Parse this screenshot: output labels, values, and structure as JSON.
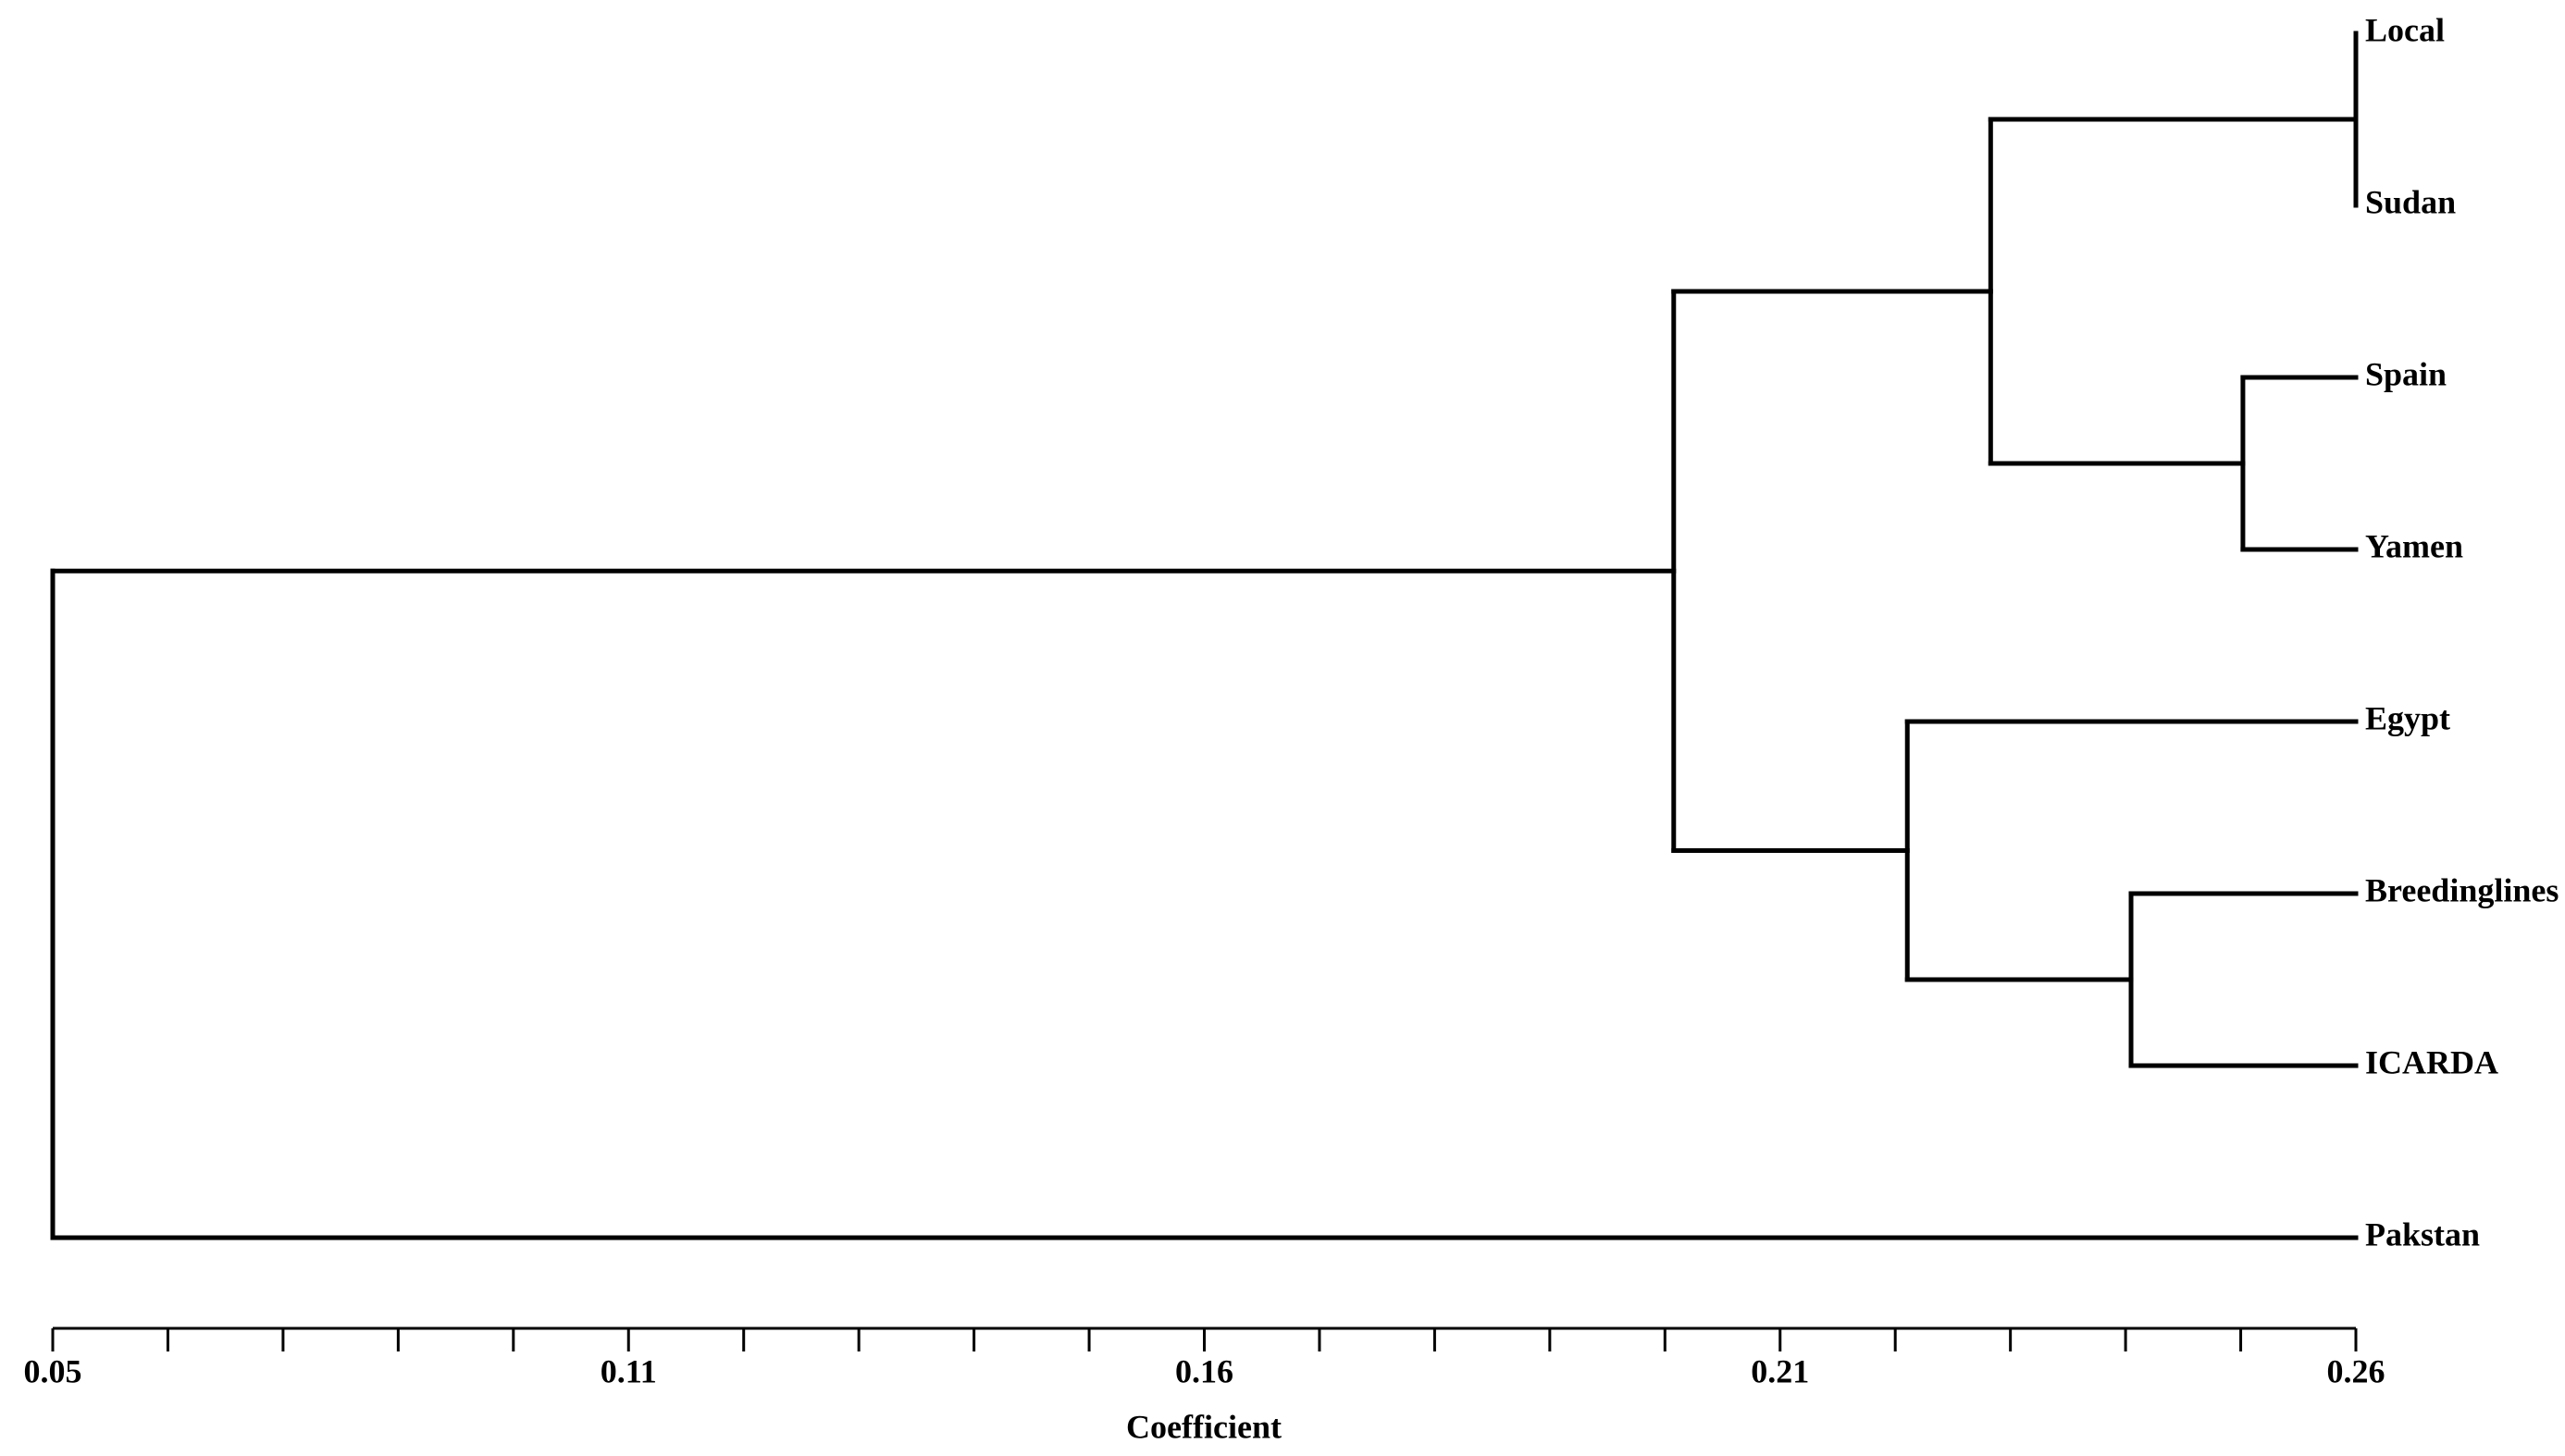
{
  "chart_data": {
    "type": "dendrogram",
    "x_label": "Coefficient",
    "xlim": [
      0.0525,
      0.2625
    ],
    "xticks": [
      {
        "value": 0.0525,
        "label": "0.05"
      },
      {
        "value": 0.105,
        "label": "0.11"
      },
      {
        "value": 0.1575,
        "label": "0.16"
      },
      {
        "value": 0.21,
        "label": "0.21"
      },
      {
        "value": 0.2625,
        "label": "0.26"
      }
    ],
    "color": "#000000",
    "tree": {
      "value": 0.0525,
      "children": [
        {
          "value": 0.2003,
          "children": [
            {
              "value": 0.2292,
              "children": [
                {
                  "value": 0.2625,
                  "children": [
                    {
                      "name": "Local"
                    },
                    {
                      "name": "Sudan"
                    }
                  ]
                },
                {
                  "value": 0.2522,
                  "children": [
                    {
                      "name": "Spain"
                    },
                    {
                      "name": "Yamen"
                    }
                  ]
                }
              ]
            },
            {
              "value": 0.2216,
              "children": [
                {
                  "name": "Egypt"
                },
                {
                  "value": 0.242,
                  "children": [
                    {
                      "name": "Breedinglines"
                    },
                    {
                      "name": "ICARDA"
                    }
                  ]
                }
              ]
            }
          ]
        },
        {
          "name": "Pakstan"
        }
      ]
    }
  }
}
